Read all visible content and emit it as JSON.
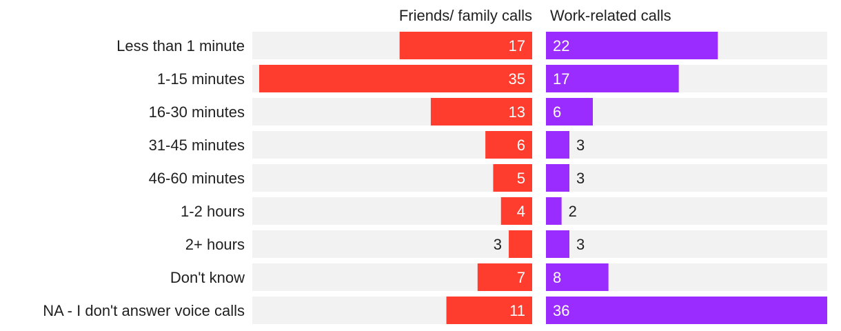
{
  "chart_data": {
    "type": "bar",
    "orientation": "horizontal",
    "layout": "side-by-side panels",
    "categories": [
      "Less than 1 minute",
      "1-15 minutes",
      "16-30 minutes",
      "31-45 minutes",
      "46-60 minutes",
      "1-2 hours",
      "2+ hours",
      "Don't know",
      "NA - I don't answer voice calls"
    ],
    "series": [
      {
        "name": "Friends/ family calls",
        "color": "#ff3d2e",
        "direction": "right-to-left",
        "values": [
          17,
          35,
          13,
          6,
          5,
          4,
          3,
          7,
          11
        ]
      },
      {
        "name": "Work-related calls",
        "color": "#9b2cff",
        "direction": "left-to-right",
        "values": [
          22,
          17,
          6,
          3,
          3,
          2,
          3,
          8,
          36
        ]
      }
    ],
    "xlim": [
      0,
      36
    ],
    "track_color": "#f2f2f2"
  }
}
